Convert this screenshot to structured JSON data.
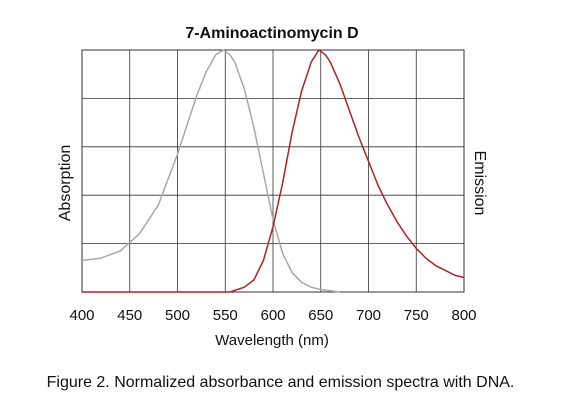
{
  "chart_data": {
    "type": "line",
    "title": "7-Aminoactinomycin D",
    "xlabel": "Wavelength (nm)",
    "ylabel": "Absorption",
    "ylabel_right": "Emission",
    "xlim": [
      400,
      800
    ],
    "ylim": [
      0,
      1
    ],
    "x_ticks": [
      "400",
      "450",
      "500",
      "550",
      "600",
      "650",
      "700",
      "750",
      "800"
    ],
    "grid": true,
    "series": [
      {
        "color": "#a8a8a8",
        "x": [
          400,
          420,
          440,
          460,
          480,
          500,
          520,
          530,
          540,
          548,
          555,
          560,
          570,
          580,
          590,
          600,
          610,
          620,
          630,
          640,
          650,
          660,
          670
        ],
        "y": [
          0.13,
          0.14,
          0.17,
          0.24,
          0.36,
          0.57,
          0.81,
          0.91,
          0.98,
          1.0,
          0.98,
          0.95,
          0.84,
          0.68,
          0.49,
          0.3,
          0.16,
          0.08,
          0.04,
          0.02,
          0.01,
          0.005,
          0.0
        ]
      },
      {
        "color": "#b22222",
        "x": [
          400,
          555,
          570,
          580,
          590,
          600,
          610,
          620,
          630,
          640,
          648,
          655,
          660,
          670,
          680,
          690,
          700,
          710,
          720,
          730,
          740,
          750,
          760,
          770,
          780,
          790,
          800
        ],
        "y": [
          0.0,
          0.0,
          0.02,
          0.05,
          0.13,
          0.27,
          0.45,
          0.66,
          0.83,
          0.95,
          1.0,
          0.98,
          0.95,
          0.86,
          0.75,
          0.64,
          0.54,
          0.44,
          0.36,
          0.29,
          0.23,
          0.18,
          0.14,
          0.11,
          0.09,
          0.07,
          0.06
        ]
      }
    ]
  },
  "caption": "Figure 2. Normalized absorbance and emission spectra with DNA."
}
